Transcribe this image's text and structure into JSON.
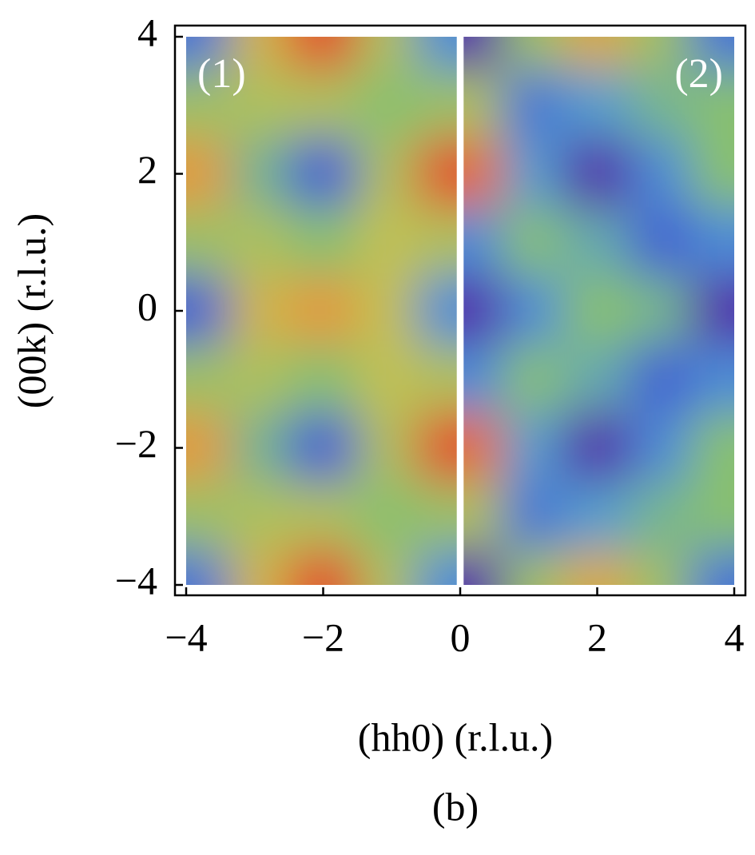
{
  "chart_data": {
    "type": "heatmap",
    "xlabel": "(hh0) (r.l.u.)",
    "ylabel": "(00k) (r.l.u.)",
    "caption": "(b)",
    "xlim": [
      -4,
      4
    ],
    "ylim": [
      -4,
      4
    ],
    "xticks": [
      {
        "value": -4,
        "label": "−4"
      },
      {
        "value": -2,
        "label": "−2"
      },
      0,
      2,
      4
    ],
    "yticks": [
      {
        "value": -4,
        "label": "−4"
      },
      {
        "value": -2,
        "label": "−2"
      },
      0,
      2,
      4
    ],
    "zlim": [
      0,
      1
    ],
    "colorscale": [
      "#5a1a9a",
      "#3f4fd0",
      "#4f9ad8",
      "#88c070",
      "#c8c050",
      "#e8903a",
      "#e0302a"
    ],
    "panels": [
      {
        "label": "(1)",
        "x": [
          -3.75,
          -3,
          -2,
          -1,
          -0.25
        ],
        "xrange": [
          -4,
          -0.05
        ],
        "y": [
          4,
          3,
          2,
          1,
          0,
          -1,
          -2,
          -3,
          -4
        ],
        "z": [
          [
            0.25,
            0.7,
            0.95,
            0.6,
            0.3
          ],
          [
            0.55,
            0.6,
            0.6,
            0.5,
            0.55
          ],
          [
            0.8,
            0.45,
            0.2,
            0.6,
            0.95
          ],
          [
            0.55,
            0.6,
            0.5,
            0.65,
            0.6
          ],
          [
            0.2,
            0.7,
            0.8,
            0.65,
            0.3
          ],
          [
            0.55,
            0.6,
            0.5,
            0.65,
            0.6
          ],
          [
            0.8,
            0.45,
            0.2,
            0.6,
            0.95
          ],
          [
            0.55,
            0.6,
            0.6,
            0.5,
            0.55
          ],
          [
            0.25,
            0.7,
            0.95,
            0.6,
            0.3
          ]
        ]
      },
      {
        "label": "(2)",
        "x": [
          0.25,
          1,
          2,
          3,
          3.75
        ],
        "xrange": [
          0.05,
          4
        ],
        "y": [
          4,
          3,
          2,
          1,
          0,
          -1,
          -2,
          -3,
          -4
        ],
        "z": [
          [
            0.05,
            0.55,
            0.75,
            0.55,
            0.25
          ],
          [
            0.6,
            0.25,
            0.35,
            0.45,
            0.5
          ],
          [
            0.9,
            0.35,
            0.05,
            0.3,
            0.5
          ],
          [
            0.3,
            0.5,
            0.4,
            0.2,
            0.3
          ],
          [
            0.05,
            0.3,
            0.5,
            0.45,
            0.05
          ],
          [
            0.3,
            0.5,
            0.4,
            0.2,
            0.3
          ],
          [
            0.9,
            0.35,
            0.05,
            0.3,
            0.5
          ],
          [
            0.6,
            0.25,
            0.35,
            0.45,
            0.5
          ],
          [
            0.05,
            0.55,
            0.75,
            0.55,
            0.25
          ]
        ]
      }
    ]
  }
}
